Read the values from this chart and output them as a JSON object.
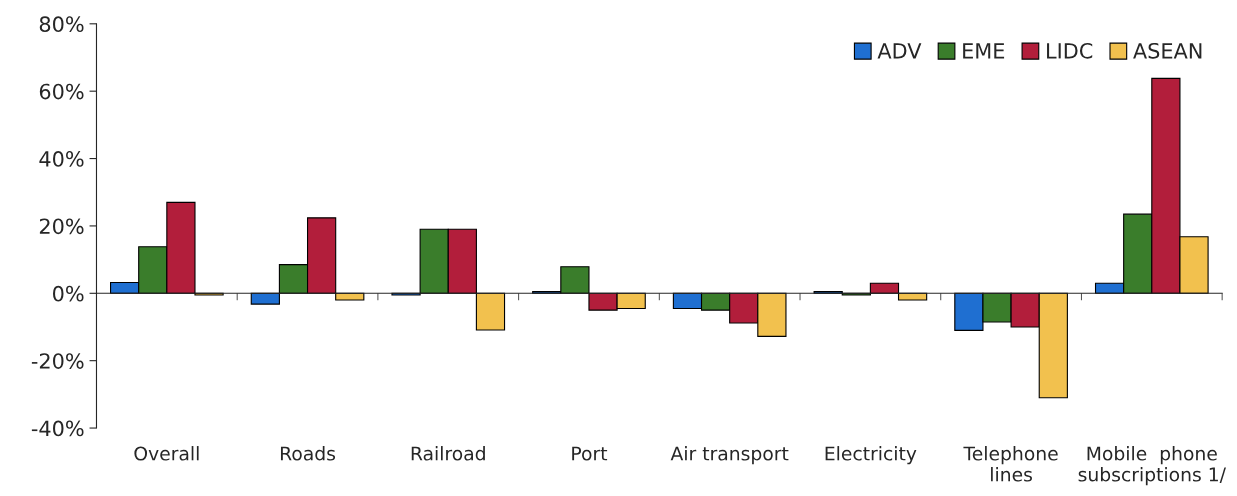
{
  "chart_data": {
    "type": "bar",
    "categories": [
      "Overall",
      "Roads",
      "Railroad",
      "Port",
      "Air transport",
      "Electricity",
      "Telephone\nlines",
      "Mobile  phone\nsubscriptions 1/"
    ],
    "series": [
      {
        "name": "ADV",
        "color": "#1f6fd1",
        "values": [
          3.2,
          -3.2,
          -0.5,
          0.5,
          -4.5,
          0.5,
          -11,
          3
        ]
      },
      {
        "name": "EME",
        "color": "#3a7d2b",
        "values": [
          13.8,
          8.5,
          19,
          7.9,
          -5,
          -0.5,
          -8.5,
          23.5
        ]
      },
      {
        "name": "LIDC",
        "color": "#b21e3b",
        "values": [
          27,
          22.4,
          19,
          -5,
          -8.8,
          3,
          -10,
          63.8
        ]
      },
      {
        "name": "ASEAN",
        "color": "#f2c14e",
        "values": [
          -0.5,
          -2,
          -10.9,
          -4.5,
          -12.8,
          -2,
          -31,
          16.8
        ]
      }
    ],
    "ylim": [
      -40,
      80
    ],
    "yticks": [
      {
        "value": -40,
        "label": "-40%"
      },
      {
        "value": -20,
        "label": "-20%"
      },
      {
        "value": 0,
        "label": "0%"
      },
      {
        "value": 20,
        "label": "20%"
      },
      {
        "value": 40,
        "label": "40%"
      },
      {
        "value": 60,
        "label": "60%"
      },
      {
        "value": 80,
        "label": "80%"
      }
    ],
    "legend": "top right"
  }
}
